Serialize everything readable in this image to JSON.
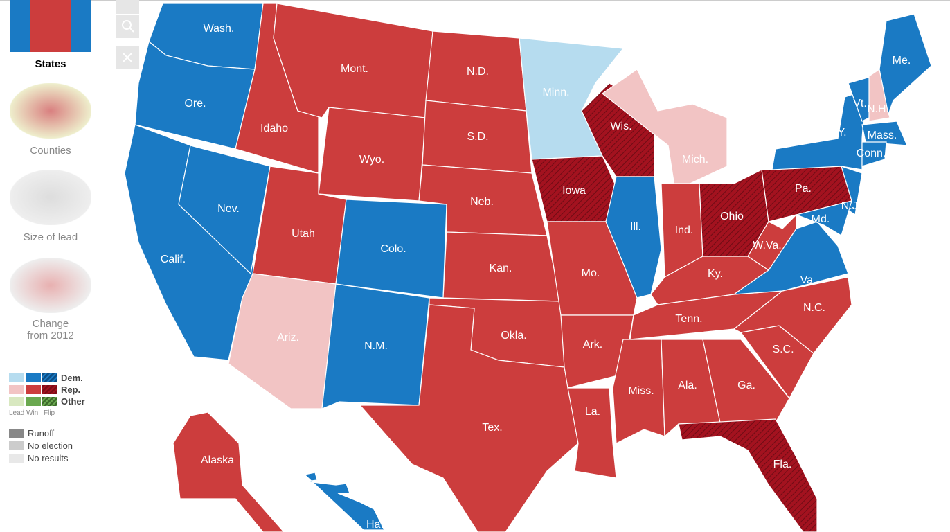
{
  "sidebar": {
    "views": [
      "States",
      "Counties",
      "Size of lead",
      "Change from 2012"
    ],
    "legend": {
      "parties": [
        "Dem.",
        "Rep.",
        "Other"
      ],
      "columns": [
        "Lead",
        "Win",
        "Flip"
      ],
      "statuses": [
        "Runoff",
        "No election",
        "No results"
      ]
    }
  },
  "map": {
    "states": [
      "Wash.",
      "Ore.",
      "Calif.",
      "Nev.",
      "Idaho",
      "Mont.",
      "Wyo.",
      "Utah",
      "Colo.",
      "Ariz.",
      "N.M.",
      "N.D.",
      "S.D.",
      "Neb.",
      "Kan.",
      "Okla.",
      "Tex.",
      "Minn.",
      "Iowa",
      "Mo.",
      "Ark.",
      "La.",
      "Wis.",
      "Ill.",
      "Mich.",
      "Ind.",
      "Ohio",
      "Ky.",
      "Tenn.",
      "Miss.",
      "Ala.",
      "Ga.",
      "Fla.",
      "S.C.",
      "N.C.",
      "Va.",
      "W.Va.",
      "Pa.",
      "N.Y.",
      "N.J.",
      "Md.",
      "Vt.",
      "N.H.",
      "Me.",
      "Mass.",
      "Conn.",
      "Alaska",
      "Hawaii"
    ]
  }
}
